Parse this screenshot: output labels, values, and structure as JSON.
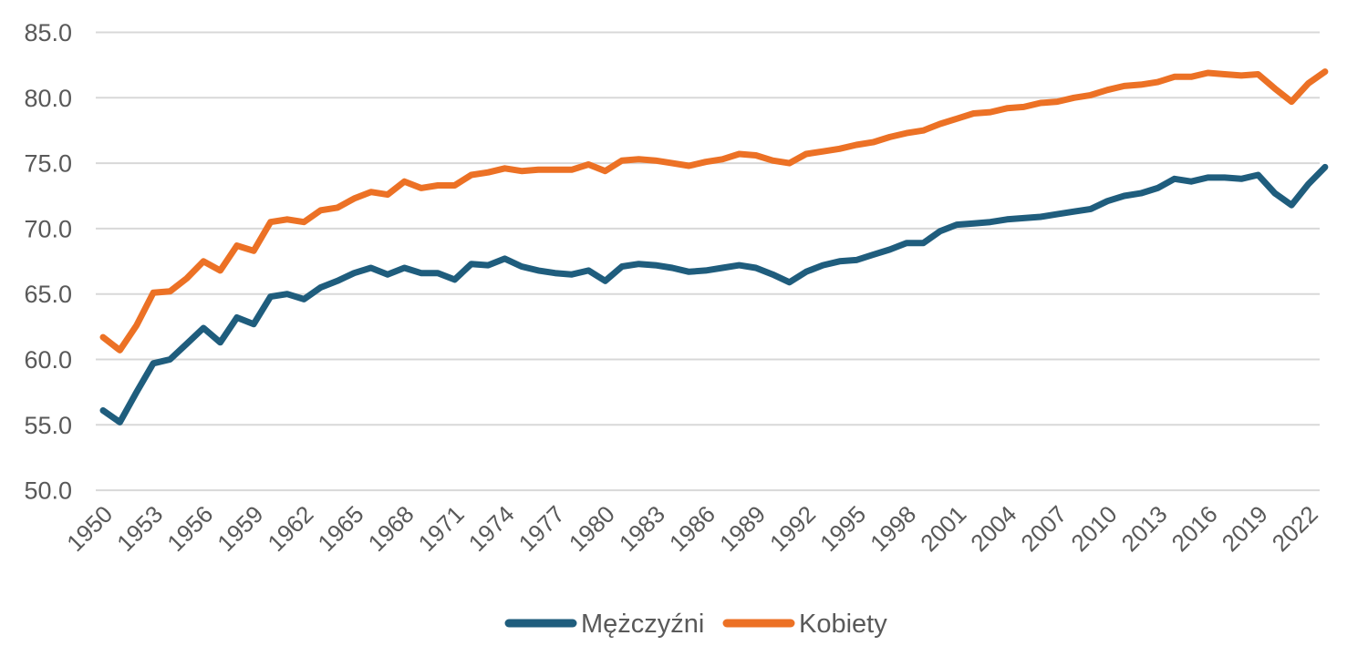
{
  "chart_data": {
    "type": "line",
    "title": "",
    "x_start": 1950,
    "x": [
      1950,
      1951,
      1952,
      1953,
      1954,
      1955,
      1956,
      1957,
      1958,
      1959,
      1960,
      1961,
      1962,
      1963,
      1964,
      1965,
      1966,
      1967,
      1968,
      1969,
      1970,
      1971,
      1972,
      1973,
      1974,
      1975,
      1976,
      1977,
      1978,
      1979,
      1980,
      1981,
      1982,
      1983,
      1984,
      1985,
      1986,
      1987,
      1988,
      1989,
      1990,
      1991,
      1992,
      1993,
      1994,
      1995,
      1996,
      1997,
      1998,
      1999,
      2000,
      2001,
      2002,
      2003,
      2004,
      2005,
      2006,
      2007,
      2008,
      2009,
      2010,
      2011,
      2012,
      2013,
      2014,
      2015,
      2016,
      2017,
      2018,
      2019,
      2020,
      2021,
      2022,
      2023
    ],
    "series": [
      {
        "name": "Mężczyźni",
        "color": "#1F5D7D",
        "values": [
          56.1,
          55.2,
          57.5,
          59.7,
          60.0,
          61.2,
          62.4,
          61.3,
          63.2,
          62.7,
          64.8,
          65.0,
          64.6,
          65.5,
          66.0,
          66.6,
          67.0,
          66.5,
          67.0,
          66.6,
          66.6,
          66.1,
          67.3,
          67.2,
          67.7,
          67.1,
          66.8,
          66.6,
          66.5,
          66.8,
          66.0,
          67.1,
          67.3,
          67.2,
          67.0,
          66.7,
          66.8,
          67.0,
          67.2,
          67.0,
          66.5,
          65.9,
          66.7,
          67.2,
          67.5,
          67.6,
          68.0,
          68.4,
          68.9,
          68.9,
          69.8,
          70.3,
          70.4,
          70.5,
          70.7,
          70.8,
          70.9,
          71.1,
          71.3,
          71.5,
          72.1,
          72.5,
          72.7,
          73.1,
          73.8,
          73.6,
          73.9,
          73.9,
          73.8,
          74.1,
          72.7,
          71.8,
          73.4,
          74.7
        ]
      },
      {
        "name": "Kobiety",
        "color": "#EC7125",
        "values": [
          61.7,
          60.7,
          62.6,
          65.1,
          65.2,
          66.2,
          67.5,
          66.8,
          68.7,
          68.3,
          70.5,
          70.7,
          70.5,
          71.4,
          71.6,
          72.3,
          72.8,
          72.6,
          73.6,
          73.1,
          73.3,
          73.3,
          74.1,
          74.3,
          74.6,
          74.4,
          74.5,
          74.5,
          74.5,
          74.9,
          74.4,
          75.2,
          75.3,
          75.2,
          75.0,
          74.8,
          75.1,
          75.3,
          75.7,
          75.6,
          75.2,
          75.0,
          75.7,
          75.9,
          76.1,
          76.4,
          76.6,
          77.0,
          77.3,
          77.5,
          78.0,
          78.4,
          78.8,
          78.9,
          79.2,
          79.3,
          79.6,
          79.7,
          80.0,
          80.2,
          80.6,
          80.9,
          81.0,
          81.2,
          81.6,
          81.6,
          81.9,
          81.8,
          81.7,
          81.8,
          80.7,
          79.7,
          81.1,
          82.0
        ]
      }
    ],
    "ylim": [
      50,
      85
    ],
    "ytick_step": 5,
    "ytick_labels": [
      "50.0",
      "55.0",
      "60.0",
      "65.0",
      "70.0",
      "75.0",
      "80.0",
      "85.0"
    ],
    "xtick_years": [
      1950,
      1953,
      1956,
      1959,
      1962,
      1965,
      1968,
      1971,
      1974,
      1977,
      1980,
      1983,
      1986,
      1989,
      1992,
      1995,
      1998,
      2001,
      2004,
      2007,
      2010,
      2013,
      2016,
      2019,
      2022
    ],
    "grid": true,
    "legend_position": "bottom"
  },
  "legend": {
    "men_label": "Mężczyźni",
    "women_label": "Kobiety"
  },
  "colors": {
    "men_line": "#1F5D7D",
    "women_line": "#EC7125",
    "gridline": "#D8D8D8",
    "axis_text": "#595959",
    "background": "#FFFFFF"
  }
}
